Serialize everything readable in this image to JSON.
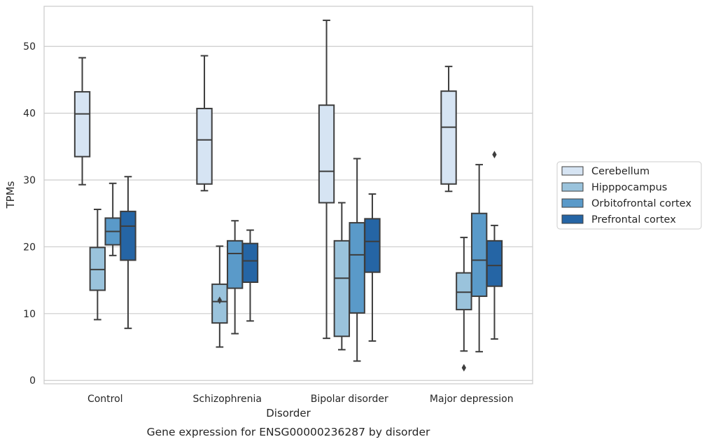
{
  "chart_data": {
    "type": "box",
    "caption": "Gene expression for ENSG00000236287 by disorder",
    "xlabel": "Disorder",
    "ylabel": "TPMs",
    "ylim": [
      -0.5,
      56
    ],
    "yticks": [
      0,
      10,
      20,
      30,
      40,
      50
    ],
    "grid": true,
    "legend_position": "right",
    "categories": [
      "Control",
      "Schizophrenia",
      "Bipolar disorder",
      "Major depression"
    ],
    "series": [
      {
        "name": "Cerebellum",
        "color": "#d6e4f3",
        "boxes": [
          {
            "whislo": 29.3,
            "q1": 33.5,
            "med": 39.9,
            "q3": 43.2,
            "whishi": 48.3,
            "fliers": []
          },
          {
            "whislo": 28.4,
            "q1": 29.4,
            "med": 36.0,
            "q3": 40.7,
            "whishi": 48.6,
            "fliers": []
          },
          {
            "whislo": 6.3,
            "q1": 26.6,
            "med": 31.3,
            "q3": 41.2,
            "whishi": 53.9,
            "fliers": []
          },
          {
            "whislo": 28.3,
            "q1": 29.4,
            "med": 37.9,
            "q3": 43.3,
            "whishi": 47.0,
            "fliers": []
          }
        ]
      },
      {
        "name": "Hipppocampus",
        "color": "#9ac3dc",
        "boxes": [
          {
            "whislo": 9.1,
            "q1": 13.5,
            "med": 16.6,
            "q3": 19.9,
            "whishi": 25.6,
            "fliers": []
          },
          {
            "whislo": 5.0,
            "q1": 8.6,
            "med": 11.8,
            "q3": 14.4,
            "whishi": 20.1,
            "fliers": [
              12.0
            ]
          },
          {
            "whislo": 4.6,
            "q1": 6.6,
            "med": 15.3,
            "q3": 20.9,
            "whishi": 26.6,
            "fliers": []
          },
          {
            "whislo": 4.4,
            "q1": 10.6,
            "med": 13.2,
            "q3": 16.1,
            "whishi": 21.4,
            "fliers": [
              1.9
            ]
          }
        ]
      },
      {
        "name": "Orbitofrontal cortex",
        "color": "#5a9ac9",
        "boxes": [
          {
            "whislo": 18.7,
            "q1": 20.3,
            "med": 22.3,
            "q3": 24.3,
            "whishi": 29.5,
            "fliers": []
          },
          {
            "whislo": 7.0,
            "q1": 13.8,
            "med": 19.0,
            "q3": 20.9,
            "whishi": 23.9,
            "fliers": []
          },
          {
            "whislo": 2.9,
            "q1": 10.1,
            "med": 18.8,
            "q3": 23.6,
            "whishi": 33.2,
            "fliers": []
          },
          {
            "whislo": 4.3,
            "q1": 12.6,
            "med": 18.0,
            "q3": 25.0,
            "whishi": 32.3,
            "fliers": []
          }
        ]
      },
      {
        "name": "Prefrontal cortex",
        "color": "#2565a5",
        "boxes": [
          {
            "whislo": 7.8,
            "q1": 18.0,
            "med": 23.1,
            "q3": 25.3,
            "whishi": 30.5,
            "fliers": []
          },
          {
            "whislo": 8.9,
            "q1": 14.7,
            "med": 17.9,
            "q3": 20.5,
            "whishi": 22.5,
            "fliers": []
          },
          {
            "whislo": 5.9,
            "q1": 16.2,
            "med": 20.8,
            "q3": 24.2,
            "whishi": 27.9,
            "fliers": []
          },
          {
            "whislo": 6.2,
            "q1": 14.1,
            "med": 17.2,
            "q3": 20.9,
            "whishi": 23.2,
            "fliers": [
              33.8
            ]
          }
        ]
      }
    ]
  }
}
